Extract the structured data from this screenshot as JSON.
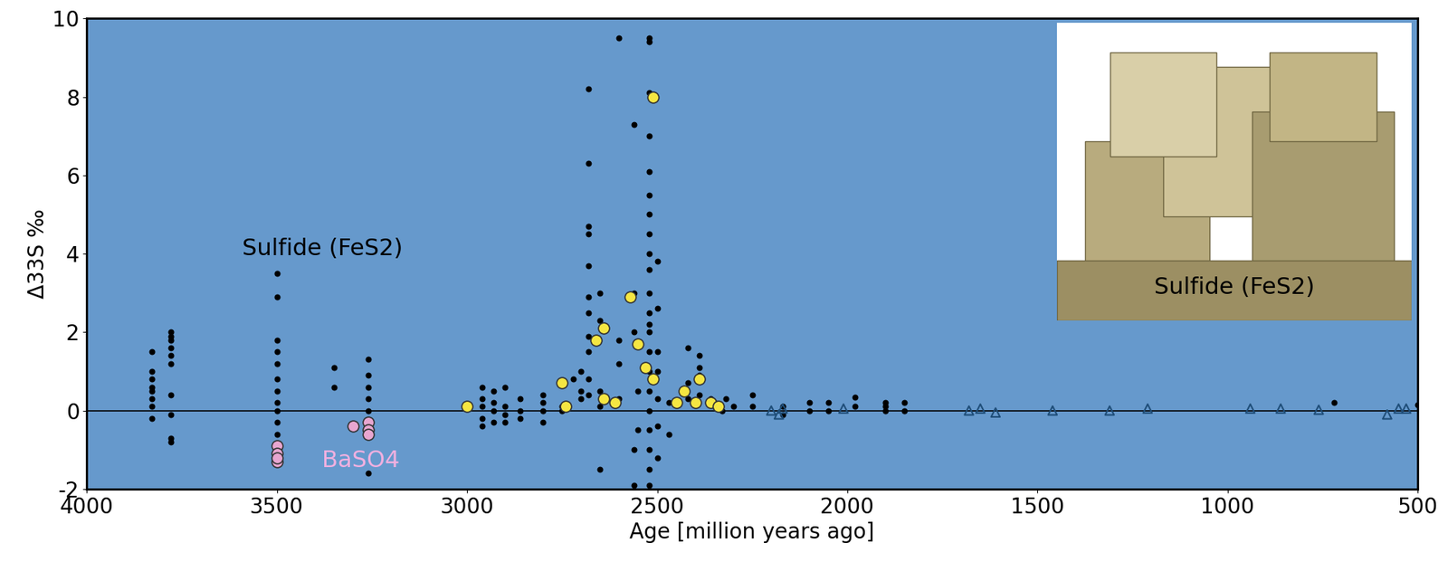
{
  "chart_data": {
    "type": "scatter",
    "xlabel": "Age [million years ago]",
    "ylabel": "Δ33S ‰",
    "xlim": [
      4000,
      500
    ],
    "ylim": [
      -2,
      10
    ],
    "xticks": [
      4000,
      3500,
      3000,
      2500,
      2000,
      1500,
      1000,
      500
    ],
    "yticks": [
      -2,
      0,
      2,
      4,
      6,
      8,
      10
    ],
    "reference_line": 0,
    "background": "#6699cc",
    "annotations": [
      "Sulfide (FeS2)",
      "BaSO4"
    ],
    "inset_label": "Sulfide (FeS2)",
    "series": [
      {
        "color": "#000000",
        "marker": "dot",
        "x": [
          3830,
          3830,
          3830,
          3830,
          3830,
          3830,
          3830,
          3830,
          3780,
          3780,
          3780,
          3780,
          3780,
          3780,
          3780,
          3780,
          3780,
          3780,
          3500,
          3500,
          3500,
          3500,
          3500,
          3500,
          3500,
          3500,
          3500,
          3500,
          3500,
          3500,
          3350,
          3350,
          3260,
          3260,
          3260,
          3260,
          3260,
          3260,
          3260,
          2960,
          2960,
          2960,
          2960,
          2960,
          2930,
          2930,
          2930,
          2930,
          2900,
          2900,
          2900,
          2900,
          2860,
          2860,
          2860,
          2800,
          2800,
          2800,
          2800,
          2750,
          2750,
          2720,
          2700,
          2700,
          2700,
          2680,
          2680,
          2680,
          2680,
          2680,
          2680,
          2680,
          2680,
          2680,
          2680,
          2680,
          2650,
          2650,
          2650,
          2650,
          2650,
          2600,
          2600,
          2600,
          2600,
          2560,
          2560,
          2560,
          2560,
          2560,
          2550,
          2550,
          2520,
          2520,
          2520,
          2520,
          2520,
          2520,
          2520,
          2520,
          2520,
          2520,
          2520,
          2520,
          2520,
          2520,
          2520,
          2520,
          2520,
          2520,
          2520,
          2520,
          2520,
          2520,
          2500,
          2500,
          2500,
          2500,
          2500,
          2500,
          2500,
          2470,
          2470,
          2420,
          2420,
          2420,
          2390,
          2390,
          2390,
          2390,
          2360,
          2350,
          2340,
          2330,
          2320,
          2300,
          2250,
          2250,
          2170,
          2170,
          2100,
          2100,
          2050,
          2050,
          1980,
          1980,
          1900,
          1900,
          1900,
          1850,
          1850,
          720,
          500
        ],
        "values": [
          1.5,
          1.0,
          0.8,
          0.6,
          0.5,
          0.3,
          0.1,
          -0.2,
          2.0,
          1.9,
          1.8,
          1.6,
          1.4,
          1.2,
          0.4,
          -0.1,
          -0.7,
          -0.8,
          3.5,
          2.9,
          1.8,
          1.5,
          1.2,
          0.8,
          0.5,
          0.2,
          0.0,
          -0.3,
          -0.6,
          -1.0,
          1.1,
          0.6,
          1.3,
          0.9,
          0.6,
          0.3,
          0.0,
          -0.3,
          -1.6,
          0.6,
          0.3,
          0.1,
          -0.2,
          -0.4,
          0.5,
          0.2,
          0.0,
          -0.3,
          0.6,
          0.1,
          -0.1,
          -0.3,
          0.3,
          0.0,
          -0.2,
          0.4,
          0.2,
          0.0,
          -0.3,
          0.1,
          0.0,
          0.8,
          1.0,
          0.5,
          0.3,
          8.2,
          6.3,
          4.7,
          4.5,
          3.7,
          2.9,
          2.5,
          1.9,
          1.5,
          0.8,
          0.4,
          3.0,
          2.3,
          0.5,
          0.1,
          -1.5,
          9.5,
          1.8,
          1.2,
          0.3,
          7.3,
          3.0,
          2.0,
          -1.0,
          -1.9,
          0.5,
          -0.5,
          9.5,
          9.4,
          8.1,
          7.0,
          6.1,
          5.5,
          5.0,
          4.5,
          4.0,
          3.6,
          3.0,
          2.5,
          2.2,
          2.0,
          1.5,
          1.0,
          0.5,
          0.0,
          -0.5,
          -1.0,
          -1.5,
          -1.9,
          3.8,
          2.6,
          1.5,
          1.0,
          0.3,
          -0.4,
          -1.2,
          -0.6,
          0.2,
          1.6,
          0.7,
          0.3,
          1.4,
          1.1,
          0.9,
          0.4,
          0.3,
          0.2,
          0.1,
          0.0,
          0.3,
          0.1,
          0.4,
          0.1,
          0.1,
          -0.1,
          0.2,
          0.0,
          0.2,
          0.0,
          0.35,
          0.1,
          0.2,
          0.1,
          0.0,
          0.2,
          0.0,
          0.2,
          0.15
        ]
      },
      {
        "color": "#f5e642",
        "marker": "circle",
        "x": [
          3000,
          2750,
          2740,
          2660,
          2640,
          2640,
          2610,
          2570,
          2550,
          2530,
          2510,
          2510,
          2450,
          2430,
          2400,
          2390,
          2360,
          2340
        ],
        "values": [
          0.1,
          0.7,
          0.1,
          1.8,
          2.1,
          0.3,
          0.2,
          2.9,
          1.7,
          1.1,
          8.0,
          0.8,
          0.2,
          0.5,
          0.2,
          0.8,
          0.2,
          0.1
        ]
      },
      {
        "color": "#e8a6d0",
        "marker": "circle",
        "x": [
          3500,
          3500,
          3500,
          3500,
          3300,
          3260,
          3260,
          3260
        ],
        "values": [
          -0.9,
          -1.1,
          -1.3,
          -1.2,
          -0.4,
          -0.3,
          -0.5,
          -0.6
        ]
      },
      {
        "color": "#1f4e79",
        "marker": "triangle",
        "x": [
          2200,
          2180,
          2170,
          2010,
          1680,
          1650,
          1610,
          1460,
          1310,
          1210,
          940,
          860,
          760,
          580,
          550,
          530
        ],
        "values": [
          0.0,
          -0.1,
          0.05,
          0.05,
          0.0,
          0.05,
          -0.05,
          0.0,
          0.0,
          0.05,
          0.05,
          0.05,
          0.02,
          -0.1,
          0.05,
          0.05
        ]
      }
    ]
  }
}
